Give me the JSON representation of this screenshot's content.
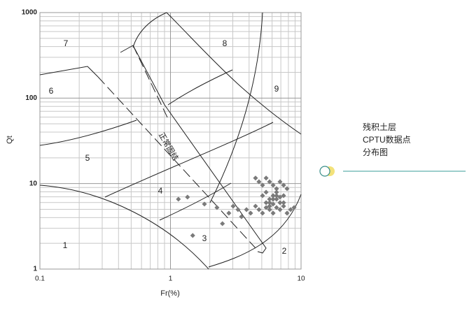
{
  "chart_data": {
    "type": "scatter",
    "xlabel": "Fr(%)",
    "ylabel": "Qt",
    "log_x": true,
    "log_y": true,
    "xlim": [
      0.1,
      10
    ],
    "ylim": [
      1,
      1000
    ],
    "xticks": [
      0.1,
      1,
      10
    ],
    "yticks": [
      1,
      10,
      100,
      1000
    ],
    "grid": true,
    "color": "#7a7a7a",
    "annotations": [
      "1",
      "2",
      "3",
      "4",
      "5",
      "6",
      "7",
      "8",
      "9",
      "正常固结"
    ],
    "legend": [
      "残积土层",
      "CPTU数据点",
      "分布图"
    ],
    "x": [
      1.15,
      1.35,
      1.82,
      1.48,
      2.27,
      2.5,
      2.8,
      3.02,
      3.29,
      3.5,
      3.82,
      4.11,
      4.48,
      4.76,
      5.07,
      5.4,
      5.74,
      6.11,
      6.49,
      6.9,
      7.35,
      7.81,
      8.32,
      8.84,
      4.48,
      4.76,
      5.07,
      5.4,
      5.74,
      6.11,
      6.49,
      6.9,
      7.35,
      7.81,
      5.07,
      5.4,
      5.74,
      6.11,
      6.49,
      6.9,
      7.35,
      5.74,
      6.11,
      6.49,
      6.9,
      5.4,
      5.74,
      6.11,
      7.35,
      6.49
    ],
    "values": [
      6.57,
      6.95,
      5.76,
      2.47,
      5.24,
      3.4,
      4.51,
      5.44,
      4.96,
      4.1,
      4.96,
      4.51,
      5.44,
      4.96,
      4.51,
      5.24,
      4.96,
      4.51,
      5.24,
      4.96,
      5.44,
      4.51,
      4.96,
      5.24,
      11.6,
      10.5,
      9.58,
      11.6,
      10.5,
      9.58,
      8.71,
      10.5,
      9.58,
      8.71,
      7.22,
      7.93,
      6.57,
      7.22,
      6.57,
      5.98,
      7.22,
      5.98,
      5.76,
      7.93,
      6.95,
      5.98,
      5.44,
      6.57,
      5.98,
      7.22
    ]
  }
}
